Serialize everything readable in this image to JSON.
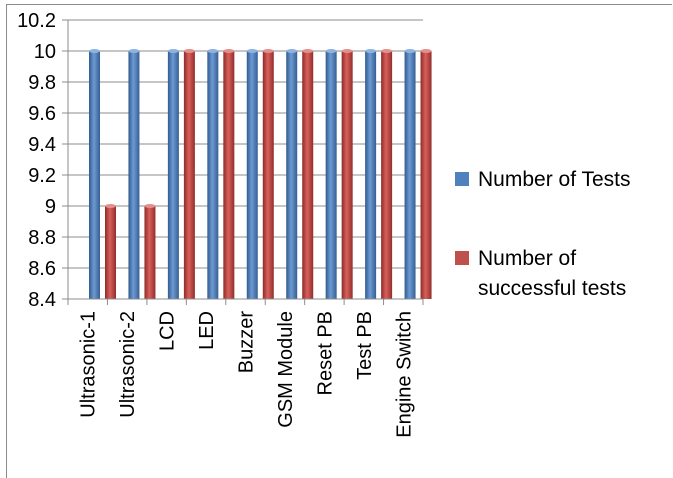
{
  "chart_data": {
    "type": "bar",
    "categories": [
      "Ultrasonic-1",
      "Ultrasonic-2",
      "LCD",
      "LED",
      "Buzzer",
      "GSM Module",
      "Reset PB",
      "Test PB",
      "Engine Switch"
    ],
    "series": [
      {
        "name": "Number of Tests",
        "values": [
          10,
          10,
          10,
          10,
          10,
          10,
          10,
          10,
          10
        ],
        "color": "#4f81bd"
      },
      {
        "name": "Number of successful tests",
        "values": [
          9,
          9,
          10,
          10,
          10,
          10,
          10,
          10,
          10
        ],
        "color": "#c0504d"
      }
    ],
    "ylim": [
      8.4,
      10.2
    ],
    "yticks": [
      "10.2",
      "10",
      "9.8",
      "9.6",
      "9.4",
      "9.2",
      "9",
      "8.8",
      "8.6",
      "8.4"
    ],
    "ytick_values": [
      10.2,
      10,
      9.8,
      9.6,
      9.4,
      9.2,
      9,
      8.8,
      8.6,
      8.4
    ],
    "grid": true,
    "legend": "right",
    "legend_lines": [
      [
        "Number of Tests"
      ],
      [
        "Number of",
        "successful tests"
      ]
    ]
  }
}
